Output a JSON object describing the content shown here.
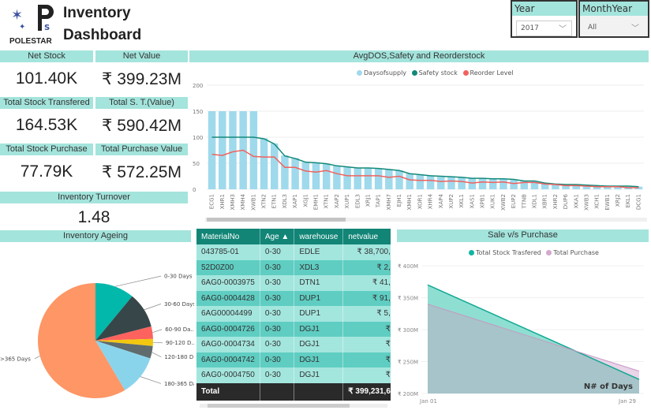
{
  "header": {
    "logo_text": "POLESTAR",
    "title_line1": "Inventory",
    "title_line2": "Dashboard"
  },
  "slicers": [
    {
      "label": "Year",
      "value": "2017"
    },
    {
      "label": "MonthYear",
      "value": "All"
    }
  ],
  "kpis": [
    {
      "label": "Net Stock",
      "value": "101.40K"
    },
    {
      "label": "Net Value",
      "value": "₹ 399.23M"
    },
    {
      "label": "Total Stock Transfered",
      "value": "164.53K"
    },
    {
      "label": "Total S. T.(Value)",
      "value": "₹ 590.42M"
    },
    {
      "label": "Total Stock Purchase",
      "value": "77.79K"
    },
    {
      "label": "Total Purchase Value",
      "value": "₹ 572.25M"
    },
    {
      "label": "Inventory Turnover",
      "value": "1.48"
    }
  ],
  "colors": {
    "header": "#a3e4dc",
    "daysofsupply": "#9fd9ec",
    "safety": "#12897a",
    "reorder": "#f0625e",
    "table_header": "#128577"
  },
  "chart_data": [
    {
      "type": "bar",
      "title": "AvgDOS,Safety and Reorderstock",
      "ylim": [
        0,
        200
      ],
      "yticks": [
        "0",
        "50",
        "100",
        "150",
        "200"
      ],
      "legend": "top-center",
      "grid": true,
      "categories": [
        "ECG1",
        "XHR1",
        "XMH3",
        "XMH4",
        "XWB1",
        "XTN2",
        "ETN1",
        "XDL3",
        "XAP1",
        "XGJ1",
        "EMH1",
        "XTN1",
        "XAP2",
        "XUP1",
        "EDL3",
        "XRJ1",
        "TAP1",
        "XMH7",
        "EJH1",
        "XMH1",
        "XOR1",
        "XHR4",
        "XAP4",
        "XUP2",
        "XKL1",
        "XAS1",
        "XPB1",
        "XUK1",
        "XWB2",
        "EUP2",
        "TTNB",
        "XDL1",
        "XBR1",
        "XHR2",
        "DUP6",
        "XKA1",
        "XWB3",
        "XCH1",
        "EWB1",
        "XRJ2",
        "EKL1",
        "DCG1"
      ],
      "series": [
        {
          "name": "Daysofsupply",
          "type": "bar",
          "color": "#9fd9ec",
          "values": [
            150,
            150,
            150,
            150,
            150,
            98,
            88,
            65,
            60,
            52,
            51,
            49,
            45,
            43,
            41,
            41,
            40,
            38,
            36,
            30,
            28,
            26,
            24,
            24,
            23,
            21,
            21,
            20,
            20,
            18,
            16,
            16,
            12,
            10,
            9,
            8,
            8,
            6,
            6,
            5,
            5,
            5
          ]
        },
        {
          "name": "Safety stock",
          "type": "line",
          "color": "#12897a",
          "values": [
            100,
            100,
            100,
            100,
            100,
            97,
            87,
            64,
            59,
            52,
            51,
            49,
            45,
            43,
            41,
            41,
            40,
            38,
            36,
            30,
            28,
            26,
            25,
            24,
            23,
            21,
            21,
            20,
            20,
            19,
            16,
            16,
            12,
            10,
            9,
            9,
            8,
            7,
            6,
            6,
            6,
            5
          ]
        },
        {
          "name": "Reorder Level",
          "type": "line",
          "color": "#f0625e",
          "values": [
            67,
            65,
            72,
            75,
            63,
            62,
            62,
            42,
            42,
            35,
            33,
            36,
            30,
            26,
            26,
            26,
            26,
            23,
            25,
            18,
            17,
            17,
            15,
            16,
            15,
            12,
            14,
            13,
            14,
            11,
            13,
            13,
            10,
            9,
            7,
            7,
            6,
            5,
            5,
            5,
            3,
            3
          ]
        }
      ]
    },
    {
      "type": "pie",
      "title": "Inventory Ageing",
      "legend": "labels",
      "categories": [
        "0-30 Days",
        "30-60 Days",
        "60-90 Da...",
        "90-120 D...",
        "120-180 D...",
        "180-365 Days",
        ">365 Days"
      ],
      "values": [
        11,
        10,
        3.5,
        2,
        3.5,
        11.5,
        58.5
      ],
      "colors": [
        "#01b8aa",
        "#374649",
        "#fd625e",
        "#f2c80f",
        "#5f6b6d",
        "#8ad4eb",
        "#fe9666"
      ]
    },
    {
      "type": "area",
      "title": "Sale v/s Purchase",
      "x": [
        "Jan 01",
        "Jan 29"
      ],
      "ylim": [
        200,
        400
      ],
      "yticks": [
        "₹ 200M",
        "₹ 250M",
        "₹ 300M",
        "₹ 350M",
        "₹ 400M"
      ],
      "legend": "top-center",
      "annotation": "N# of Days",
      "series": [
        {
          "name": "Total Stock Trasfered",
          "color": "#12b5a0",
          "values": [
            370,
            222
          ]
        },
        {
          "name": "Total Purchase",
          "color": "#d3a8cf",
          "values": [
            340,
            235
          ]
        }
      ]
    }
  ],
  "table": {
    "columns": [
      "MaterialNo",
      "Age",
      "warehouse",
      "netvalue"
    ],
    "sort_icon": "caret-up-icon",
    "rows": [
      [
        "043785-01",
        "0-30",
        "EDLE",
        "₹ 38,700,"
      ],
      [
        "52D0Z00",
        "0-30",
        "XDL3",
        "₹ 2,"
      ],
      [
        "6AG0-0003975",
        "0-30",
        "DTN1",
        "₹ 41,"
      ],
      [
        "6AG0-0004428",
        "0-30",
        "DUP1",
        "₹ 91,"
      ],
      [
        "6AG00004499",
        "0-30",
        "DUP1",
        "₹ 5,"
      ],
      [
        "6AG0-0004726",
        "0-30",
        "DGJ1",
        "₹"
      ],
      [
        "6AG0-0004734",
        "0-30",
        "DGJ1",
        "₹"
      ],
      [
        "6AG0-0004742",
        "0-30",
        "DGJ1",
        "₹"
      ],
      [
        "6AG0-0004750",
        "0-30",
        "DGJ1",
        "₹"
      ]
    ],
    "total_label": "Total",
    "total_value": "₹ 399,231,6"
  }
}
